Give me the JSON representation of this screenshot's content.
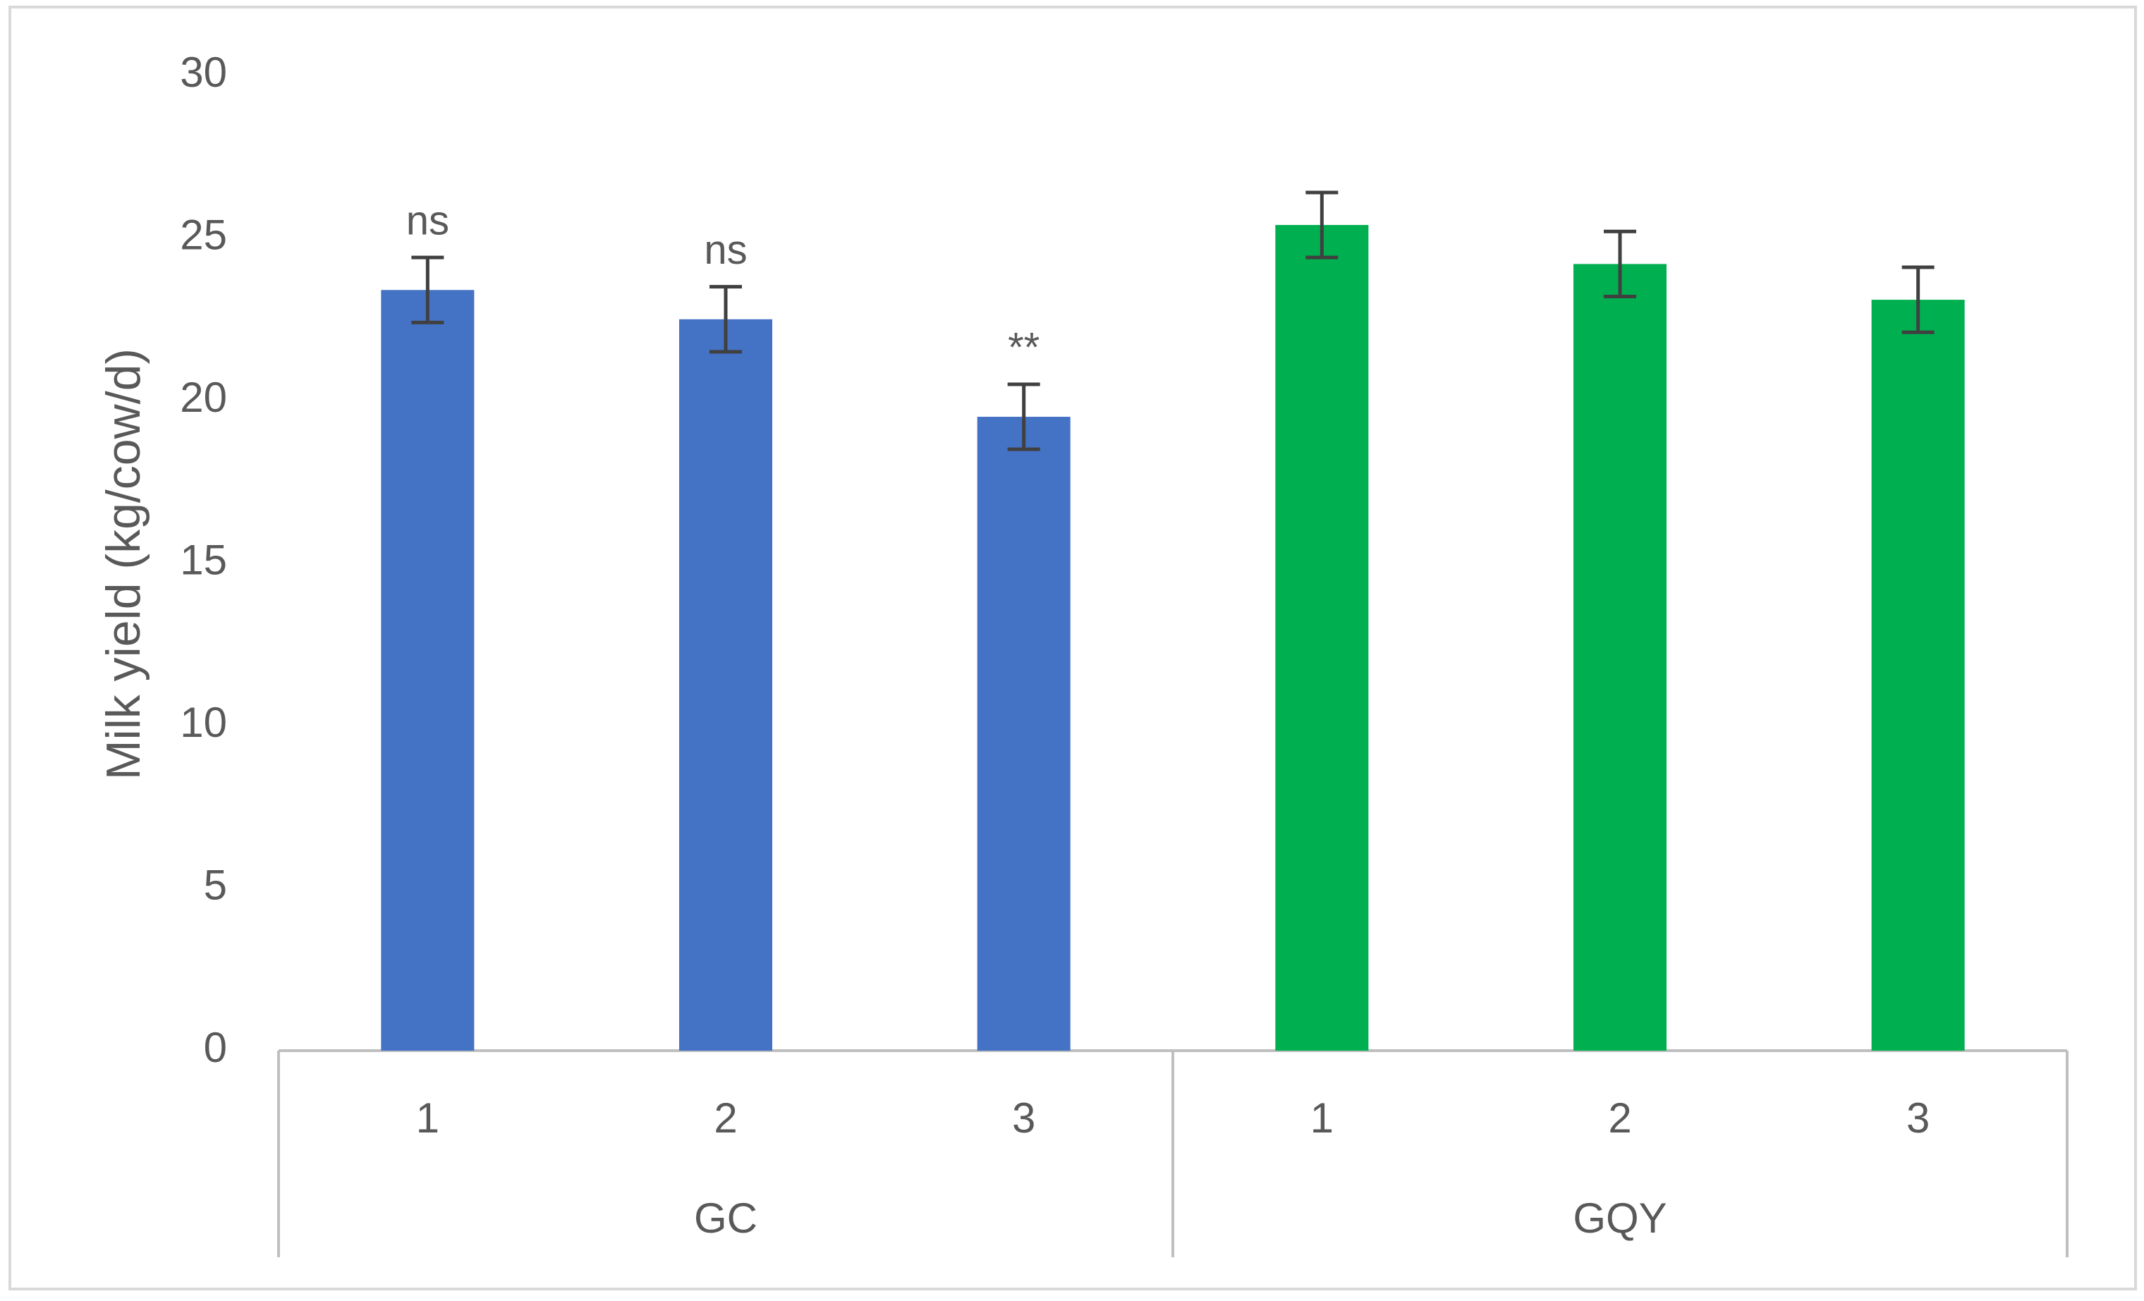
{
  "chart_data": {
    "type": "grouped-bar",
    "y_label": "Milk yield (kg/cow/d)",
    "ylim": [
      0,
      30
    ],
    "yticks": [
      0,
      5,
      10,
      15,
      20,
      25,
      30
    ],
    "grid": false,
    "groups": [
      {
        "name": "GC",
        "color": "#4472c4",
        "categories": [
          "1",
          "2",
          "3"
        ],
        "values": [
          23.4,
          22.5,
          19.5
        ],
        "errors": [
          1.0,
          1.0,
          1.0
        ],
        "annotations": [
          "ns",
          "ns",
          "**"
        ]
      },
      {
        "name": "GQY",
        "color": "#00b050",
        "categories": [
          "1",
          "2",
          "3"
        ],
        "values": [
          25.4,
          24.2,
          23.1
        ],
        "errors": [
          1.0,
          1.0,
          1.0
        ],
        "annotations": [
          null,
          null,
          null
        ]
      }
    ]
  }
}
